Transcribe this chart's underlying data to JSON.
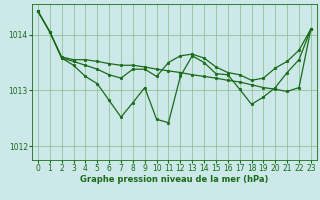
{
  "background_color": "#cce8e8",
  "plot_bg_color": "#cce8e8",
  "grid_color": "#88bb88",
  "line_color": "#1a6b1a",
  "marker_color": "#1a6b1a",
  "xlabel": "Graphe pression niveau de la mer (hPa)",
  "ylim": [
    1011.75,
    1014.55
  ],
  "xlim": [
    -0.5,
    23.5
  ],
  "yticks": [
    1012,
    1013,
    1014
  ],
  "xticks": [
    0,
    1,
    2,
    3,
    4,
    5,
    6,
    7,
    8,
    9,
    10,
    11,
    12,
    13,
    14,
    15,
    16,
    17,
    18,
    19,
    20,
    21,
    22,
    23
  ],
  "series": [
    [
      1014.42,
      1014.05,
      1013.6,
      1013.55,
      1013.55,
      1013.52,
      1013.48,
      1013.45,
      1013.45,
      1013.42,
      1013.38,
      1013.35,
      1013.32,
      1013.28,
      1013.25,
      1013.22,
      1013.18,
      1013.15,
      1013.1,
      1013.05,
      1013.02,
      1012.98,
      1013.05,
      1014.1
    ],
    [
      1014.42,
      1014.05,
      1013.58,
      1013.52,
      1013.45,
      1013.38,
      1013.28,
      1013.22,
      1013.38,
      1013.38,
      1013.25,
      1013.5,
      1013.62,
      1013.65,
      1013.58,
      1013.42,
      1013.32,
      1013.28,
      1013.18,
      1013.22,
      1013.4,
      1013.52,
      1013.72,
      1014.1
    ],
    [
      1014.42,
      1014.05,
      1013.58,
      1013.45,
      1013.25,
      1013.12,
      1012.82,
      1012.52,
      1012.78,
      1013.05,
      1012.48,
      1012.42,
      1013.25,
      1013.62,
      1013.5,
      1013.3,
      1013.28,
      1013.02,
      1012.75,
      1012.88,
      1013.05,
      1013.32,
      1013.55,
      1014.1
    ]
  ]
}
